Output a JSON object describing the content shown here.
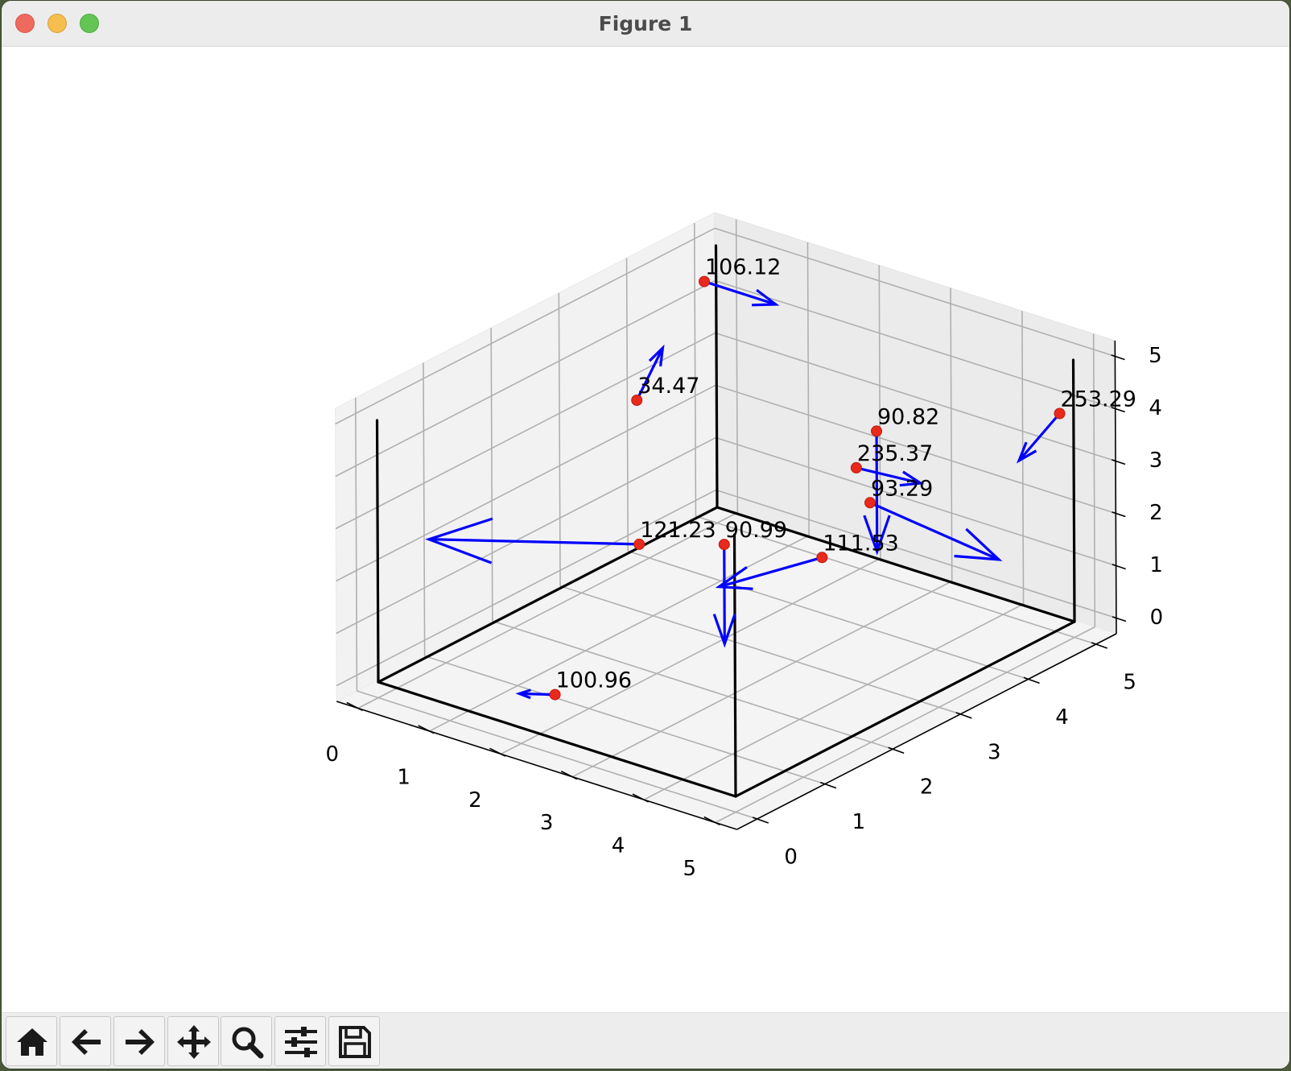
{
  "window": {
    "title": "Figure 1",
    "controls": [
      "close",
      "minimize",
      "maximize"
    ]
  },
  "toolbar": {
    "buttons": [
      {
        "name": "home",
        "icon": "home-icon"
      },
      {
        "name": "back",
        "icon": "arrow-left-icon"
      },
      {
        "name": "forward",
        "icon": "arrow-right-icon"
      },
      {
        "name": "pan",
        "icon": "move-icon"
      },
      {
        "name": "zoom",
        "icon": "magnifier-icon"
      },
      {
        "name": "configure-subplots",
        "icon": "sliders-icon"
      },
      {
        "name": "save",
        "icon": "floppy-disk-icon"
      }
    ]
  },
  "chart_data": {
    "type": "scatter",
    "projection": "3d",
    "title": "",
    "xlabel": "",
    "ylabel": "",
    "zlabel": "",
    "xlim": [
      0,
      5
    ],
    "ylim": [
      0,
      5
    ],
    "zlim": [
      0,
      5
    ],
    "x_ticks": [
      "0",
      "1",
      "2",
      "3",
      "4",
      "5"
    ],
    "y_ticks": [
      "0",
      "1",
      "2",
      "3",
      "4",
      "5"
    ],
    "z_ticks": [
      "0",
      "1",
      "2",
      "3",
      "4",
      "5"
    ],
    "grid": true,
    "colors": {
      "points": "#e8291c",
      "arrows": "#0000ff",
      "box": "#000000",
      "grid": "#b0b0b0",
      "pane": "#f2f2f2"
    },
    "points": [
      {
        "label": "106.12",
        "x": 0.5,
        "y": 4.3,
        "z": 5.0,
        "u": 1.0,
        "v": 0.0,
        "w": 0.0
      },
      {
        "label": "34.47",
        "x": 0.5,
        "y": 3.3,
        "z": 3.4,
        "u": -0.3,
        "v": 0.7,
        "w": 0.4
      },
      {
        "label": "253.29",
        "x": 4.9,
        "y": 4.9,
        "z": 4.0,
        "u": 0.0,
        "v": -0.6,
        "w": -0.5
      },
      {
        "label": "90.82",
        "x": 3.0,
        "y": 4.2,
        "z": 3.3,
        "u": 0.0,
        "v": 0.0,
        "w": -2.3
      },
      {
        "label": "235.37",
        "x": 3.0,
        "y": 3.9,
        "z": 2.8,
        "u": 0.9,
        "v": 0.0,
        "w": 0.1
      },
      {
        "label": "93.29",
        "x": 3.0,
        "y": 4.1,
        "z": 2.0,
        "u": 1.8,
        "v": 0.0,
        "w": -0.3
      },
      {
        "label": "90.99",
        "x": 2.0,
        "y": 3.0,
        "z": 1.5,
        "u": 0.0,
        "v": 0.0,
        "w": -1.9
      },
      {
        "label": "111.53",
        "x": 2.8,
        "y": 3.6,
        "z": 1.2,
        "u": -0.4,
        "v": -1.1,
        "w": 0.0
      },
      {
        "label": "121.23",
        "x": 1.0,
        "y": 2.8,
        "z": 1.2,
        "u": -1.9,
        "v": -1.1,
        "w": 0.0
      },
      {
        "label": "100.96",
        "x": 2.0,
        "y": 0.5,
        "z": 0.3,
        "u": -0.5,
        "v": 0.0,
        "w": -0.2
      }
    ],
    "frame_lines": [
      [
        [
          0,
          0,
          0
        ],
        [
          5,
          0,
          0
        ]
      ],
      [
        [
          5,
          0,
          0
        ],
        [
          5,
          5,
          0
        ]
      ],
      [
        [
          5,
          5,
          0
        ],
        [
          0,
          5,
          0
        ]
      ],
      [
        [
          0,
          5,
          0
        ],
        [
          0,
          0,
          0
        ]
      ],
      [
        [
          0,
          0,
          0
        ],
        [
          0,
          0,
          5
        ]
      ],
      [
        [
          5,
          0,
          0
        ],
        [
          5,
          0,
          5
        ]
      ],
      [
        [
          5,
          5,
          0
        ],
        [
          5,
          5,
          5
        ]
      ],
      [
        [
          0,
          5,
          0
        ],
        [
          0,
          5,
          5
        ]
      ]
    ]
  }
}
